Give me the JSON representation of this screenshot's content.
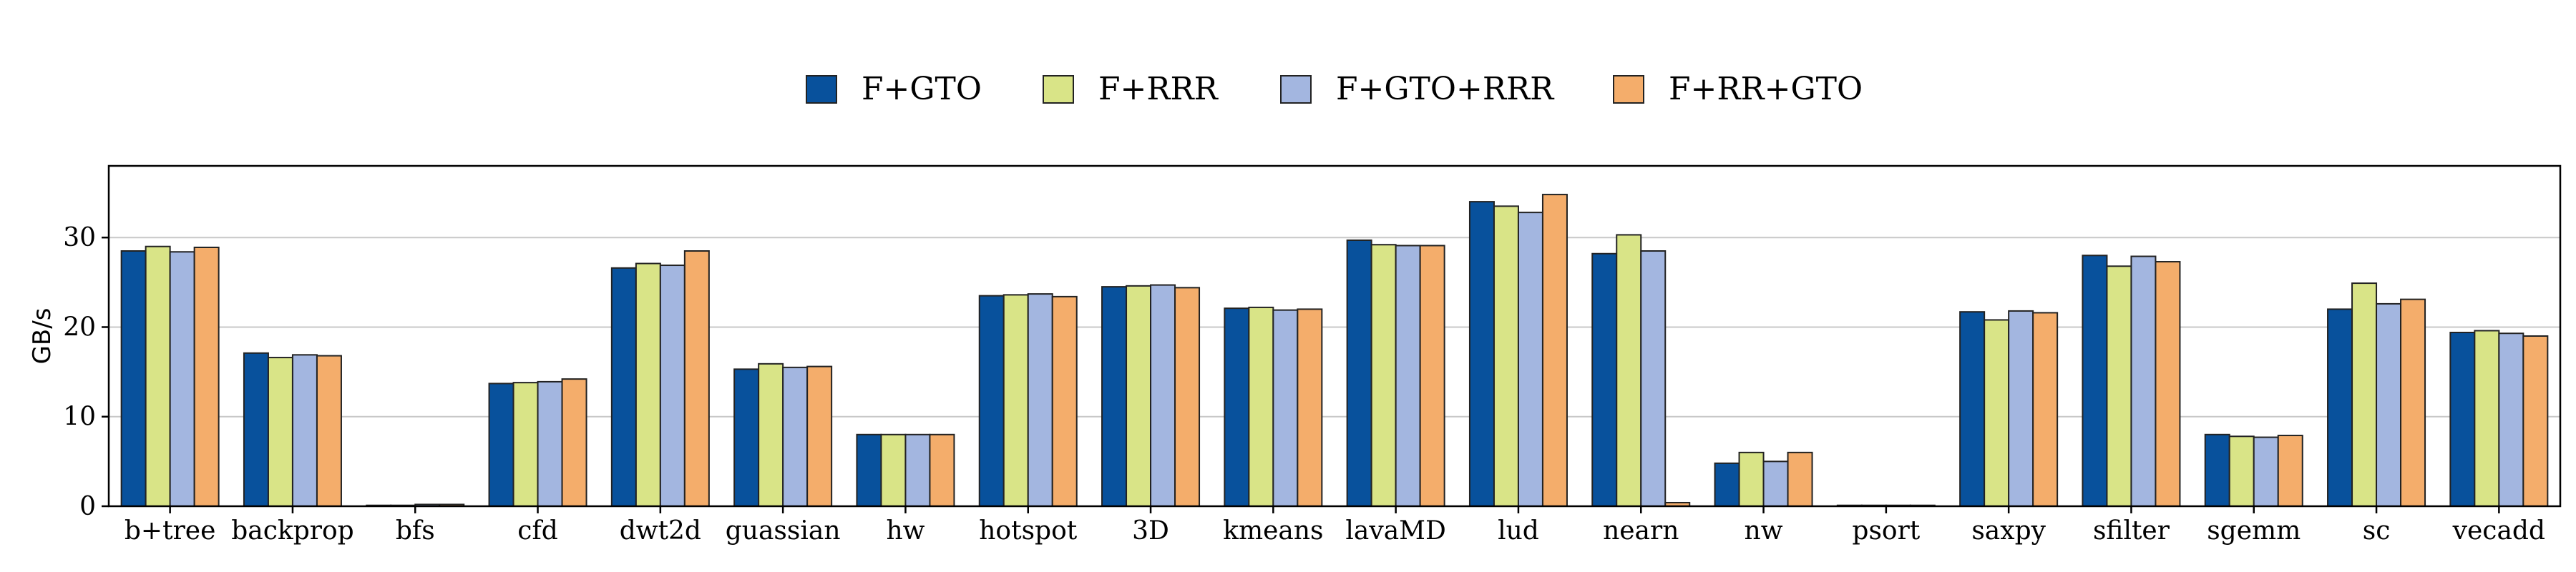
{
  "chart_data": {
    "type": "bar",
    "title": "",
    "xlabel": "",
    "ylabel": "GB/s",
    "ylim": [
      0,
      38
    ],
    "yticks": [
      0,
      10,
      20,
      30
    ],
    "grid": "horizontal",
    "legend_position": "top-center",
    "categories": [
      "b+tree",
      "backprop",
      "bfs",
      "cfd",
      "dwt2d",
      "guassian",
      "hw",
      "hotspot",
      "3D",
      "kmeans",
      "lavaMD",
      "lud",
      "nearn",
      "nw",
      "psort",
      "saxpy",
      "sfilter",
      "sgemm",
      "sc",
      "vecadd"
    ],
    "series": [
      {
        "name": "F+GTO",
        "color": "#08519c",
        "values": [
          28.5,
          17.1,
          0.1,
          13.7,
          26.6,
          15.3,
          8.0,
          23.5,
          24.5,
          22.1,
          29.7,
          34.0,
          28.2,
          4.8,
          0.1,
          21.7,
          28.0,
          8.0,
          22.0,
          19.4
        ]
      },
      {
        "name": "F+RRR",
        "color": "#d9e487",
        "values": [
          29.0,
          16.6,
          0.1,
          13.8,
          27.1,
          15.9,
          8.0,
          23.6,
          24.6,
          22.2,
          29.2,
          33.5,
          30.3,
          6.0,
          0.1,
          20.8,
          26.8,
          7.8,
          24.9,
          19.6
        ]
      },
      {
        "name": "F+GTO+RRR",
        "color": "#a3b6e0",
        "values": [
          28.4,
          16.9,
          0.2,
          13.9,
          26.9,
          15.5,
          8.0,
          23.7,
          24.7,
          21.9,
          29.1,
          32.8,
          28.5,
          5.0,
          0.1,
          21.8,
          27.9,
          7.7,
          22.6,
          19.3
        ]
      },
      {
        "name": "F+RR+GTO",
        "color": "#f4ad6b",
        "values": [
          28.9,
          16.8,
          0.2,
          14.2,
          28.5,
          15.6,
          8.0,
          23.4,
          24.4,
          22.0,
          29.1,
          34.8,
          0.4,
          6.0,
          0.1,
          21.6,
          27.3,
          7.9,
          23.1,
          19.0
        ]
      }
    ]
  }
}
